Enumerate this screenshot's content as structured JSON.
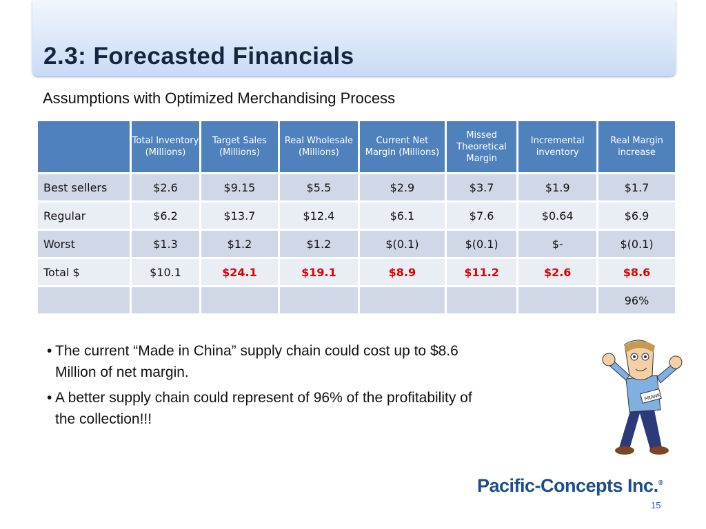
{
  "header": {
    "title": "2.3: Forecasted Financials",
    "subtitle": "Assumptions with Optimized Merchandising Process"
  },
  "table": {
    "columns": [
      null,
      "Total Inventory (Millions)",
      "Target Sales (Millions)",
      "Real Wholesale (Millions)",
      "Current Net Margin (Millions)",
      "Missed Theoretical Margin",
      "Incremental inventory",
      "Real Margin increase"
    ],
    "rows": [
      [
        "Best sellers",
        "$2.6",
        "$9.15",
        "$5.5",
        "$2.9",
        "$3.7",
        "$1.9",
        "$1.7"
      ],
      [
        "Regular",
        "$6.2",
        "$13.7",
        "$12.4",
        "$6.1",
        "$7.6",
        "$0.64",
        "$6.9"
      ],
      [
        "Worst",
        "$1.3",
        "$1.2",
        "$1.2",
        "$(0.1)",
        "$(0.1)",
        "$-",
        "$(0.1)"
      ],
      [
        "Total $",
        "$10.1",
        "$24.1",
        "$19.1",
        "$8.9",
        "$11.2",
        "$2.6",
        "$8.6"
      ],
      [
        null,
        null,
        null,
        null,
        null,
        null,
        null,
        "96%"
      ]
    ]
  },
  "bullets": [
    "The current “Made in China” supply chain could cost up to $8.6 Million of net margin.",
    "A better supply chain could represent of 96% of the profitability of the collection!!!"
  ],
  "badge": "FRANK",
  "footer": {
    "logo": "Pacific-Concepts Inc.",
    "mark": "®",
    "page": "15"
  }
}
